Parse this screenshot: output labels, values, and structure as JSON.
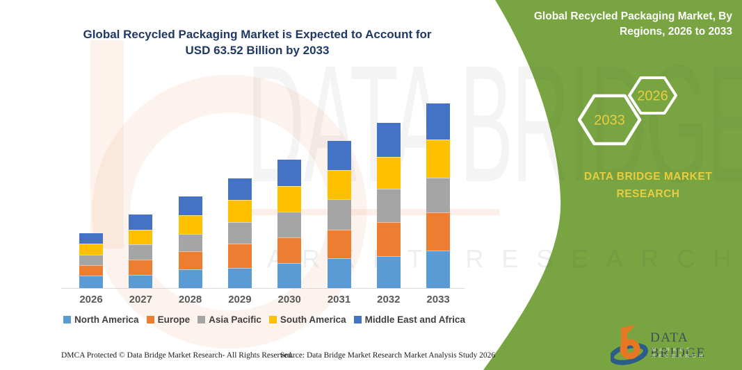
{
  "header": {
    "title_line1": "Global Recycled Packaging Market is Expected to Account for",
    "title_line2": "USD 63.52 Billion by 2033",
    "title_color": "#1F3864"
  },
  "chart_data": {
    "type": "bar",
    "stacked": true,
    "title": "Global Recycled Packaging Market is Expected to Account for USD 63.52 Billion by 2033",
    "unit": "USD Billion",
    "categories": [
      "2026",
      "2027",
      "2028",
      "2029",
      "2030",
      "2031",
      "2032",
      "2033"
    ],
    "series": [
      {
        "name": "North America",
        "color": "#5B9BD5",
        "values": [
          4.2,
          4.6,
          6.5,
          7.0,
          8.6,
          10.2,
          11.0,
          12.9
        ]
      },
      {
        "name": "Europe",
        "color": "#ED7D31",
        "values": [
          3.8,
          5.3,
          6.2,
          8.3,
          8.9,
          9.8,
          11.6,
          13.2
        ]
      },
      {
        "name": "Asia Pacific",
        "color": "#A5A5A5",
        "values": [
          3.4,
          5.2,
          6.0,
          7.4,
          8.8,
          10.6,
          11.5,
          11.9
        ]
      },
      {
        "name": "South America",
        "color": "#FFC000",
        "values": [
          3.8,
          5.0,
          6.4,
          7.7,
          8.9,
          10.0,
          11.0,
          13.0
        ]
      },
      {
        "name": "Middle East and Africa",
        "color": "#4472C4",
        "values": [
          3.6,
          5.3,
          6.5,
          7.4,
          8.9,
          10.0,
          11.8,
          12.5
        ]
      }
    ],
    "totals": [
      18.8,
      25.4,
      31.6,
      37.8,
      44.1,
      50.6,
      56.9,
      63.52
    ],
    "ylim": [
      0,
      68
    ],
    "grid": false,
    "y_axis_visible": false,
    "legend_position": "bottom"
  },
  "side_panel": {
    "title_line1": "Global Recycled Packaging Market, By",
    "title_line2": "Regions, 2026 to 2033",
    "hexagon_end_year": "2033",
    "hexagon_start_year": "2026",
    "brand_line1": "DATA BRIDGE MARKET",
    "brand_line2": "RESEARCH",
    "background_color": "#78A441",
    "accent_text_color": "#E8CD3F"
  },
  "footer": {
    "dmca_text": "DMCA Protected © Data Bridge Market Research-  All Rights Reserved.",
    "source_text": "Source: Data Bridge Market Research  Market Analysis Study 2026"
  },
  "brand_logo": {
    "name": "DATA BRIDGE",
    "subtitle": "MARKET RESEARCH",
    "orange": "#E87722",
    "blue": "#2B5C8A"
  },
  "watermark": {
    "text_large": "DATA BRIDGE",
    "text_band": "MARKET RESEARCH"
  }
}
